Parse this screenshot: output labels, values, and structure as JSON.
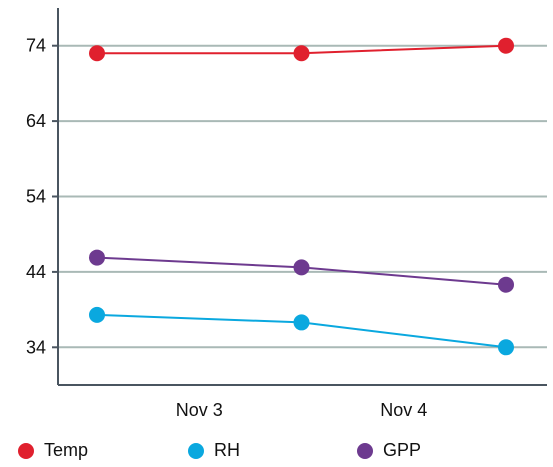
{
  "chart_data": {
    "type": "line",
    "categories": [
      "",
      "Nov 3",
      "",
      "Nov 4",
      ""
    ],
    "x_positions": [
      0,
      1,
      2,
      3,
      4
    ],
    "ylim": [
      29,
      79
    ],
    "yticks": [
      34,
      44,
      54,
      64,
      74
    ],
    "grid": true,
    "legend_placement": "bottom",
    "series": [
      {
        "name": "Temp",
        "color": "#e0202e",
        "x": [
          0,
          2,
          4
        ],
        "values": [
          73,
          73,
          74
        ]
      },
      {
        "name": "RH",
        "color": "#0aa8df",
        "x": [
          0,
          2,
          4
        ],
        "values": [
          38.3,
          37.3,
          34
        ]
      },
      {
        "name": "GPP",
        "color": "#6d3a8f",
        "x": [
          0,
          2,
          4
        ],
        "values": [
          45.9,
          44.6,
          42.3
        ]
      }
    ]
  }
}
